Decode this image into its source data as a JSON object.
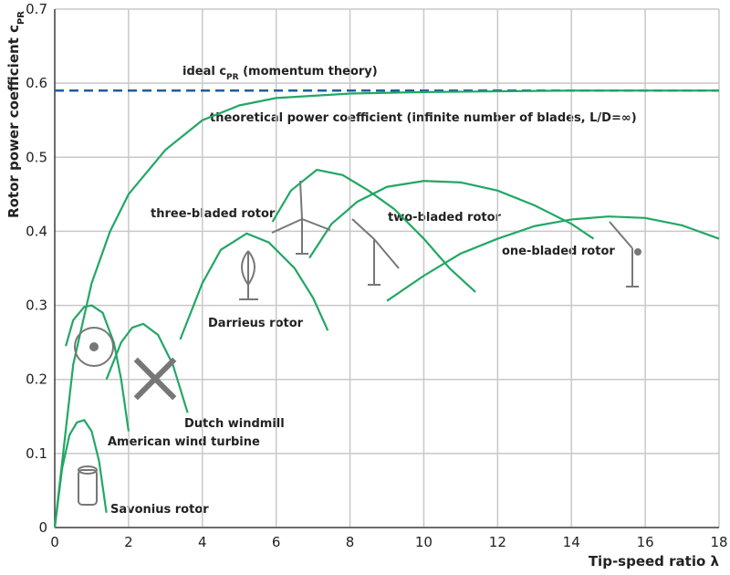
{
  "chart_data": {
    "type": "line",
    "ylabel": [
      "Rotor power coefficient c",
      "PR"
    ],
    "xlabel": "Tip-speed ratio λ",
    "xlim": [
      0,
      18
    ],
    "xticks": [
      0,
      2,
      4,
      6,
      8,
      10,
      12,
      14,
      16,
      18
    ],
    "ylim": [
      0,
      0.7
    ],
    "yticks": [
      0,
      0.1,
      0.2,
      0.3,
      0.4,
      0.5,
      0.6,
      0.7
    ],
    "grid": true,
    "reference_line": {
      "y": 0.59,
      "color": "#1f5f9e",
      "dashed": true,
      "label": [
        "ideal c",
        "PR",
        " (momentum theory)"
      ]
    },
    "series": [
      {
        "name": "theoretical power coefficient (infinite number of blades, L/D=∞)",
        "color": "#22a765",
        "x": [
          0,
          0.5,
          1,
          1.5,
          2,
          3,
          4,
          5,
          6,
          8,
          10,
          14,
          18
        ],
        "values": [
          0,
          0.22,
          0.33,
          0.4,
          0.45,
          0.51,
          0.55,
          0.57,
          0.58,
          0.586,
          0.588,
          0.59,
          0.59
        ]
      },
      {
        "name": "three-bladed rotor",
        "color": "#22a765",
        "x": [
          5.9,
          6.4,
          7.1,
          7.8,
          8.5,
          9.2,
          10,
          10.7,
          11.4
        ],
        "values": [
          0.413,
          0.455,
          0.483,
          0.476,
          0.455,
          0.43,
          0.39,
          0.35,
          0.318
        ]
      },
      {
        "name": "two-bladed rotor",
        "color": "#22a765",
        "x": [
          6.9,
          7.5,
          8.2,
          9,
          10,
          11,
          12,
          13,
          14,
          14.6
        ],
        "values": [
          0.364,
          0.41,
          0.44,
          0.46,
          0.468,
          0.466,
          0.455,
          0.435,
          0.41,
          0.39
        ]
      },
      {
        "name": "one-bladed rotor",
        "color": "#22a765",
        "x": [
          9,
          10,
          11,
          12,
          13,
          14,
          15,
          16,
          17,
          18
        ],
        "values": [
          0.306,
          0.34,
          0.37,
          0.39,
          0.407,
          0.416,
          0.42,
          0.418,
          0.408,
          0.39
        ]
      },
      {
        "name": "Darrieus rotor",
        "color": "#22a765",
        "x": [
          3.4,
          4,
          4.5,
          5.2,
          5.8,
          6.5,
          7,
          7.4
        ],
        "values": [
          0.254,
          0.33,
          0.375,
          0.397,
          0.385,
          0.35,
          0.31,
          0.266
        ]
      },
      {
        "name": "Dutch windmill",
        "color": "#22a765",
        "x": [
          1.4,
          1.8,
          2.1,
          2.4,
          2.8,
          3.2,
          3.6
        ],
        "values": [
          0.2,
          0.25,
          0.27,
          0.275,
          0.26,
          0.22,
          0.155
        ]
      },
      {
        "name": "American wind turbine",
        "color": "#22a765",
        "x": [
          0.3,
          0.5,
          0.8,
          1.0,
          1.3,
          1.6,
          1.8,
          2.0
        ],
        "values": [
          0.245,
          0.28,
          0.298,
          0.3,
          0.29,
          0.25,
          0.2,
          0.13
        ]
      },
      {
        "name": "Savonius rotor",
        "color": "#22a765",
        "x": [
          0,
          0.2,
          0.4,
          0.6,
          0.8,
          1.0,
          1.2,
          1.4
        ],
        "values": [
          0,
          0.08,
          0.125,
          0.142,
          0.145,
          0.13,
          0.09,
          0.02
        ]
      }
    ]
  }
}
